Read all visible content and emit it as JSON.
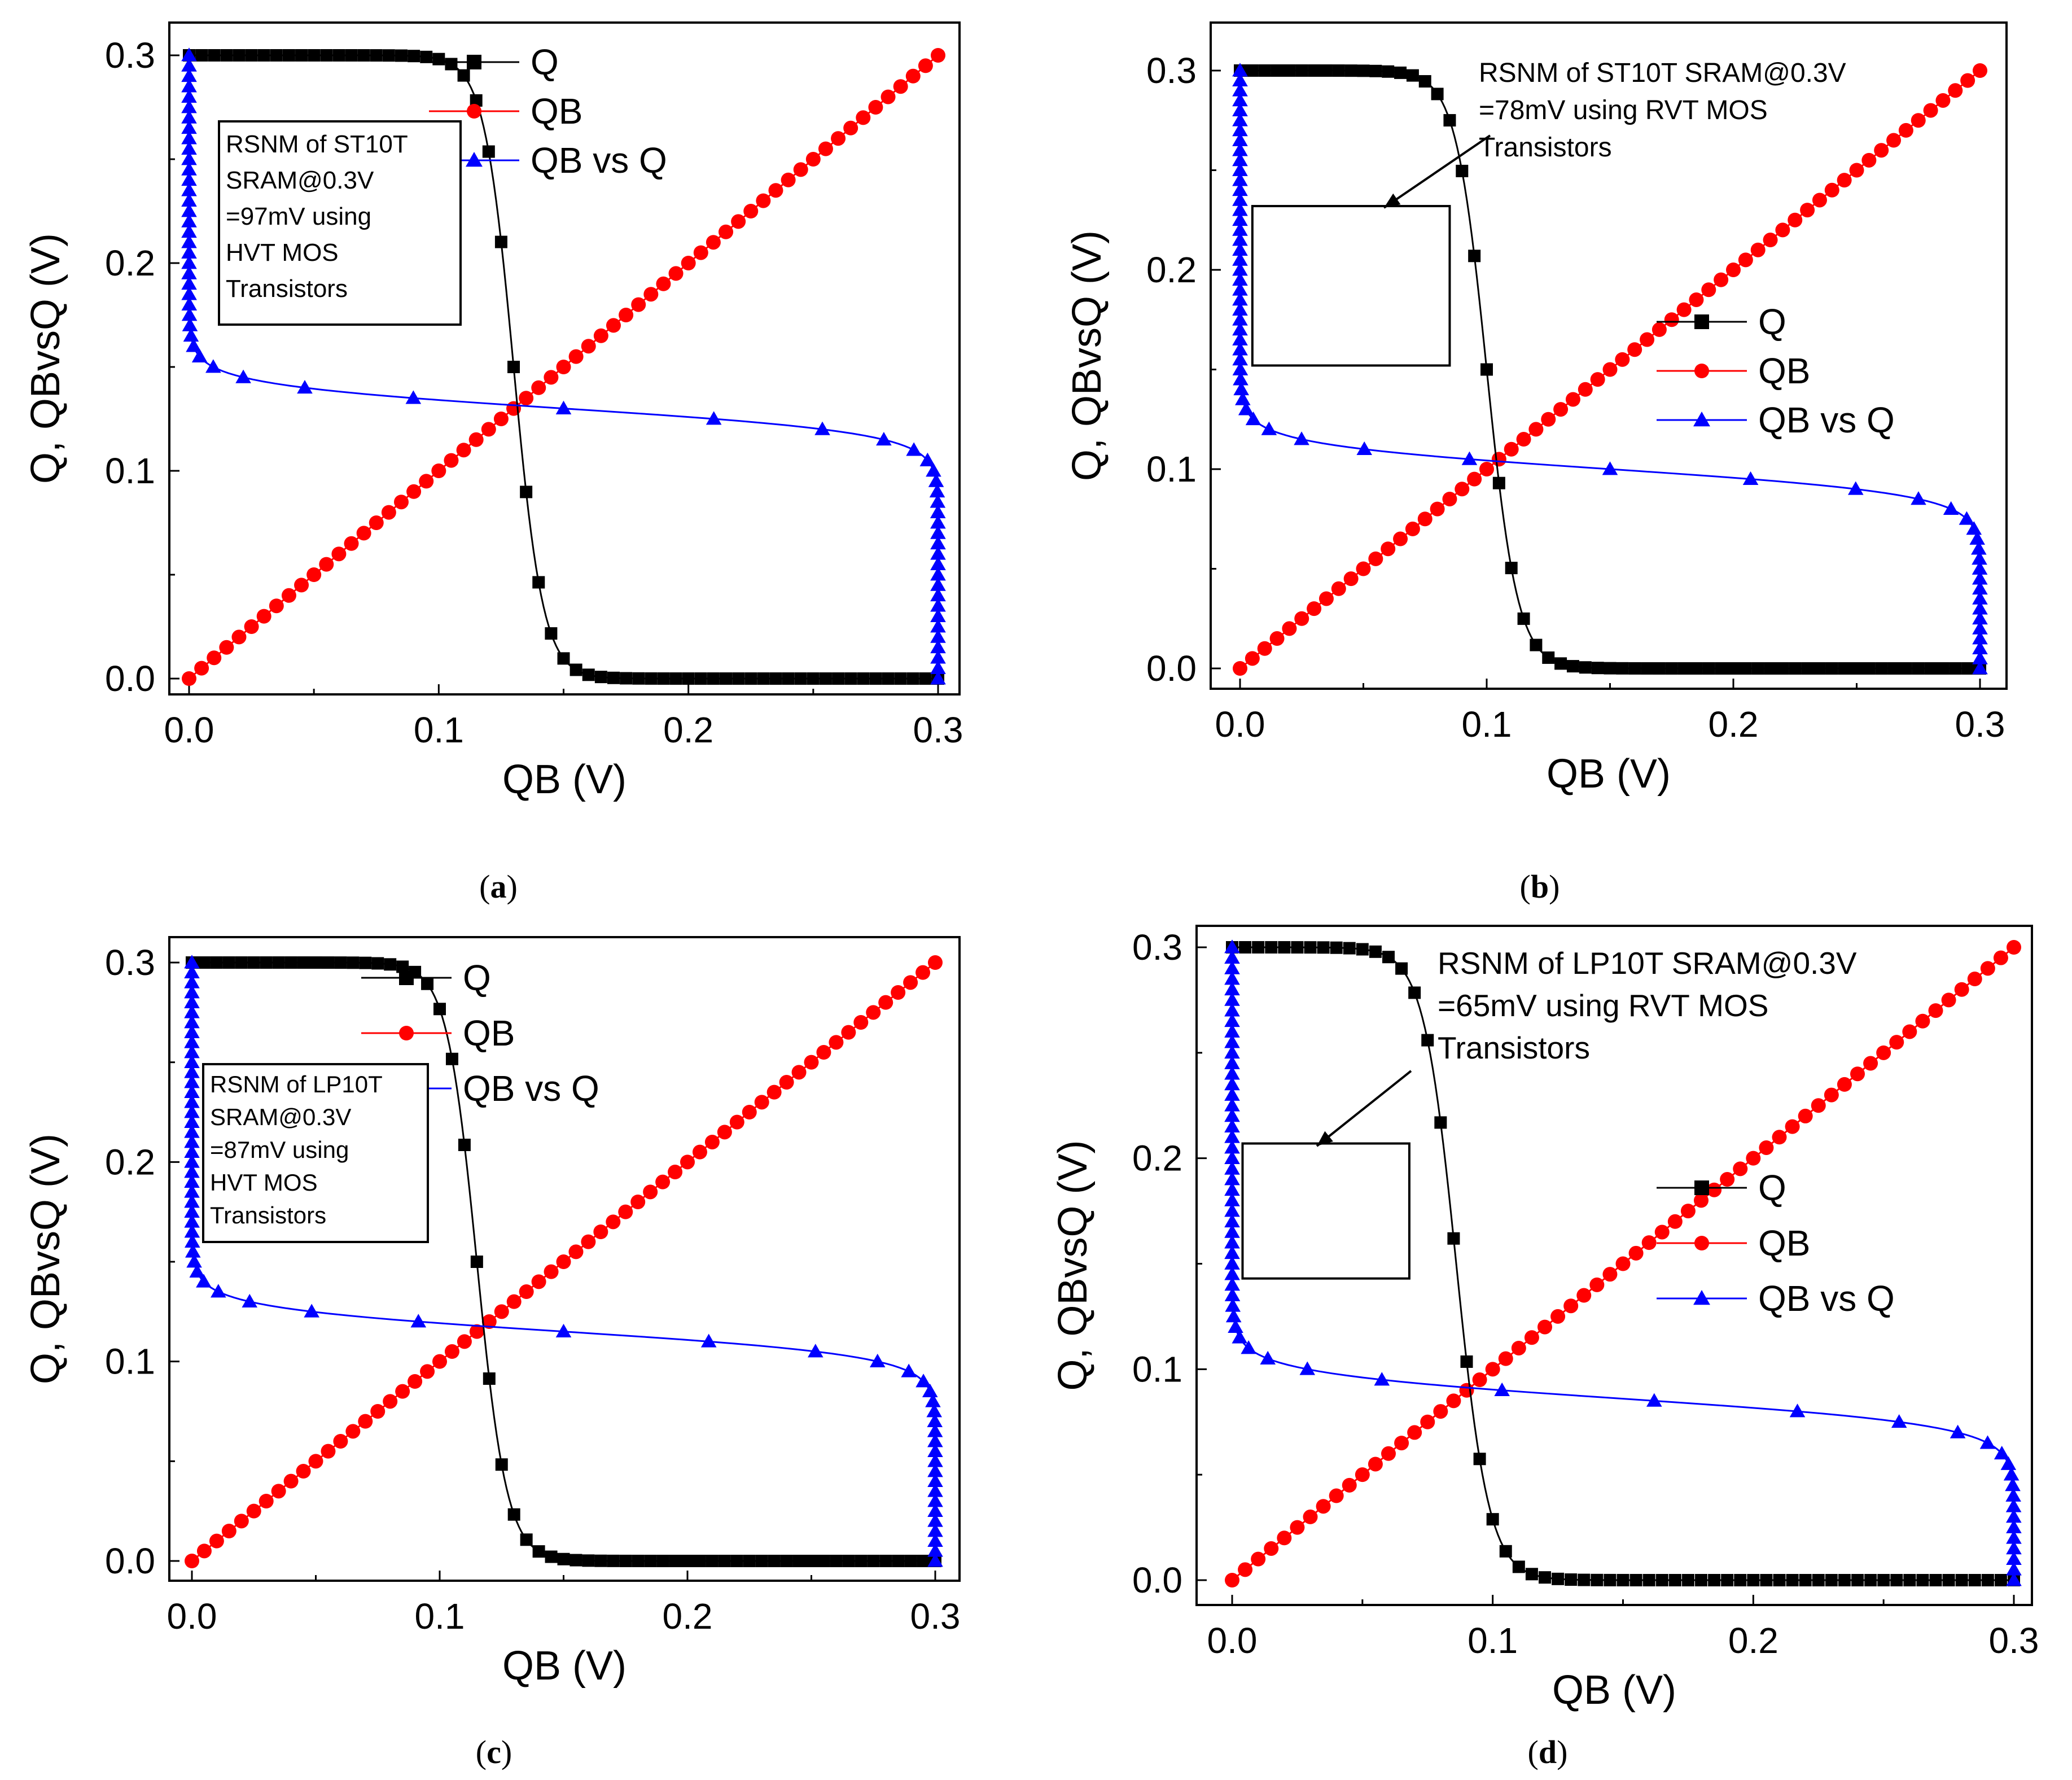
{
  "figure": {
    "panels": [
      {
        "id": "a",
        "caption": {
          "open": "(",
          "letter": "a",
          "close": ")"
        },
        "annotation_lines": [
          "RSNM of ST10T",
          "SRAM@0.3V",
          "=97mV using",
          "HVT MOS",
          "Transistors"
        ],
        "has_square": false,
        "colors": {
          "Q": "#000000",
          "QB": "#ff0000",
          "QBvsQ": "#0000ff"
        }
      },
      {
        "id": "b",
        "caption": {
          "open": "(",
          "letter": "b",
          "close": ")"
        },
        "annotation_lines": [
          "RSNM of ST10T SRAM@0.3V",
          "=78mV using RVT MOS",
          "Transistors"
        ],
        "has_square": true,
        "colors": {
          "Q": "#000000",
          "QB": "#ff0000",
          "QBvsQ": "#0000ff"
        }
      },
      {
        "id": "c",
        "caption": {
          "open": "(",
          "letter": "c",
          "close": ")"
        },
        "annotation_lines": [
          "RSNM of LP10T",
          "SRAM@0.3V",
          "=87mV using",
          "HVT MOS",
          "Transistors"
        ],
        "has_square": false,
        "colors": {
          "Q": "#000000",
          "QB": "#ff0000",
          "QBvsQ": "#0000ff"
        }
      },
      {
        "id": "d",
        "caption": {
          "open": "(",
          "letter": "d",
          "close": ")"
        },
        "annotation_lines": [
          "RSNM of LP10T SRAM@0.3V",
          "=65mV using RVT MOS",
          "Transistors"
        ],
        "has_square": true,
        "colors": {
          "Q": "#000000",
          "QB": "#ff0000",
          "QBvsQ": "#0000ff"
        }
      }
    ]
  },
  "chart_data": [
    {
      "type": "line",
      "panel": "a",
      "xlabel": "QB (V)",
      "ylabel": "Q, QBvsQ (V)",
      "xlim": [
        0,
        0.3
      ],
      "ylim": [
        0,
        0.3
      ],
      "xticks": [
        "0.0",
        "0.1",
        "0.2",
        "0.3"
      ],
      "yticks": [
        "0.0",
        "0.1",
        "0.2",
        "0.3"
      ],
      "legend": [
        "Q",
        "QB",
        "QB vs Q"
      ],
      "legend_position": "top-right",
      "series": [
        {
          "name": "Q",
          "marker": "square",
          "color": "#000000",
          "vtc": {
            "vm": 0.13,
            "k": 170
          }
        },
        {
          "name": "QB",
          "marker": "circle",
          "color": "#ff0000",
          "line": "y = x"
        },
        {
          "name": "QB vs Q",
          "marker": "triangle",
          "color": "#0000ff",
          "vtc": {
            "vm": 0.13,
            "k": 170
          },
          "mirrored": true
        }
      ],
      "annotation_rsnm_mV": 97,
      "annotation_text": "RSNM of ST10T SRAM@0.3V =97mV using HVT MOS Transistors"
    },
    {
      "type": "line",
      "panel": "b",
      "xlabel": "QB (V)",
      "ylabel": "Q, QBvsQ (V)",
      "xlim": [
        0,
        0.3
      ],
      "ylim": [
        0,
        0.3
      ],
      "xticks": [
        "0.0",
        "0.1",
        "0.2",
        "0.3"
      ],
      "yticks": [
        "0.0",
        "0.1",
        "0.2",
        "0.3"
      ],
      "legend": [
        "Q",
        "QB",
        "QB vs Q"
      ],
      "legend_position": "center-right",
      "series": [
        {
          "name": "Q",
          "marker": "square",
          "color": "#000000",
          "vtc": {
            "vm": 0.1,
            "k": 160
          }
        },
        {
          "name": "QB",
          "marker": "circle",
          "color": "#ff0000",
          "line": "y = x"
        },
        {
          "name": "QB vs Q",
          "marker": "triangle",
          "color": "#0000ff",
          "vtc": {
            "vm": 0.1,
            "k": 160
          },
          "mirrored": true
        }
      ],
      "noise_margin_box": {
        "x0": 0.005,
        "x1": 0.085,
        "y0": 0.152,
        "y1": 0.232
      },
      "annotation_rsnm_mV": 78,
      "annotation_text": "RSNM of ST10T SRAM@0.3V =78mV using RVT MOS Transistors"
    },
    {
      "type": "line",
      "panel": "c",
      "xlabel": "QB (V)",
      "ylabel": "Q, QBvsQ (V)",
      "xlim": [
        0,
        0.3
      ],
      "ylim": [
        0,
        0.3
      ],
      "xticks": [
        "0.0",
        "0.1",
        "0.2",
        "0.3"
      ],
      "yticks": [
        "0.0",
        "0.1",
        "0.2",
        "0.3"
      ],
      "legend": [
        "Q",
        "QB",
        "QB vs Q"
      ],
      "legend_position": "top-right",
      "series": [
        {
          "name": "Q",
          "marker": "square",
          "color": "#000000",
          "vtc": {
            "vm": 0.115,
            "k": 165
          }
        },
        {
          "name": "QB",
          "marker": "circle",
          "color": "#ff0000",
          "line": "y = x"
        },
        {
          "name": "QB vs Q",
          "marker": "triangle",
          "color": "#0000ff",
          "vtc": {
            "vm": 0.115,
            "k": 165
          },
          "mirrored": true
        }
      ],
      "annotation_rsnm_mV": 87,
      "annotation_text": "RSNM of LP10T SRAM@0.3V =87mV using HVT MOS Transistors"
    },
    {
      "type": "line",
      "panel": "d",
      "xlabel": "QB (V)",
      "ylabel": "Q, QBvsQ (V)",
      "xlim": [
        0,
        0.3
      ],
      "ylim": [
        0,
        0.3
      ],
      "xticks": [
        "0.0",
        "0.1",
        "0.2",
        "0.3"
      ],
      "yticks": [
        "0.0",
        "0.1",
        "0.2",
        "0.3"
      ],
      "legend": [
        "Q",
        "QB",
        "QB vs Q"
      ],
      "legend_position": "center-right",
      "series": [
        {
          "name": "Q",
          "marker": "square",
          "color": "#000000",
          "vtc": {
            "vm": 0.086,
            "k": 160
          }
        },
        {
          "name": "QB",
          "marker": "circle",
          "color": "#ff0000",
          "line": "y = x"
        },
        {
          "name": "QB vs Q",
          "marker": "triangle",
          "color": "#0000ff",
          "vtc": {
            "vm": 0.086,
            "k": 160
          },
          "mirrored": true
        }
      ],
      "noise_margin_box": {
        "x0": 0.004,
        "x1": 0.068,
        "y0": 0.143,
        "y1": 0.207
      },
      "annotation_rsnm_mV": 65,
      "annotation_text": "RSNM of LP10T SRAM@0.3V =65mV using RVT MOS Transistors"
    }
  ]
}
